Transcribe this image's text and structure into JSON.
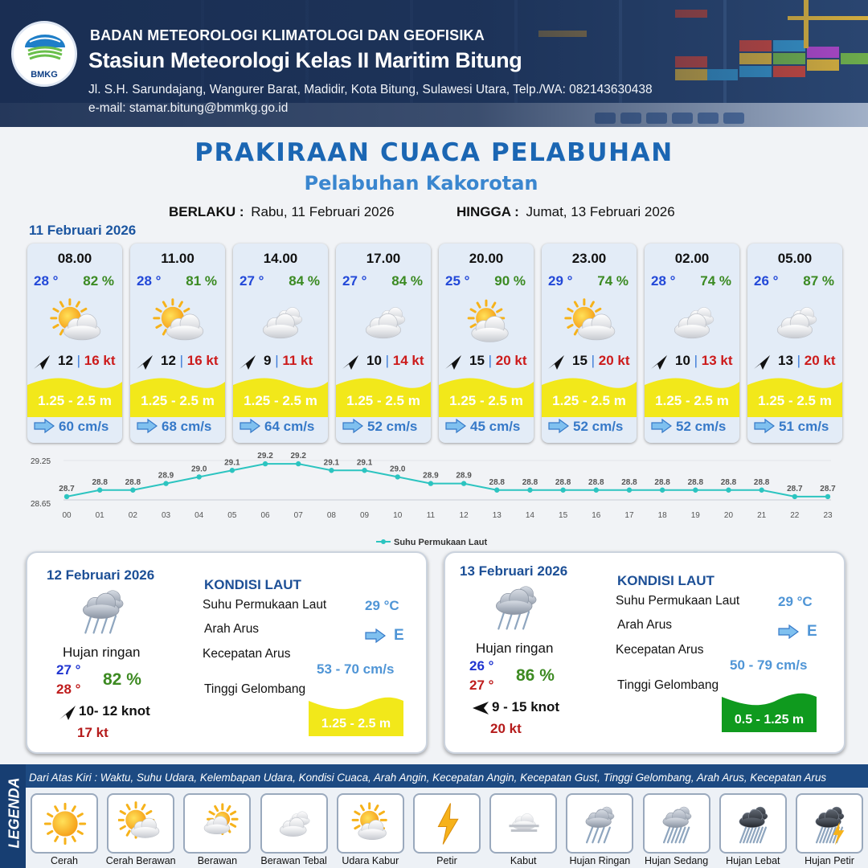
{
  "header": {
    "organization": "BADAN METEOROLOGI KLIMATOLOGI DAN GEOFISIKA",
    "station": "Stasiun Meteorologi Kelas II Maritim Bitung",
    "address": "Jl. S.H. Sarundajang, Wangurer Barat, Madidir, Kota Bitung, Sulawesi Utara, Telp./WA: 082143630438",
    "email": "e-mail: stamar.bitung@bmmkg.go.id",
    "logo_text": "BMKG"
  },
  "title": "PRAKIRAAN CUACA PELABUHAN",
  "subtitle": "Pelabuhan Kakorotan",
  "validity": {
    "from_label": "BERLAKU :",
    "from_value": "Rabu, 11 Februari 2026",
    "to_label": "HINGGA :",
    "to_value": "Jumat, 13 Februari 2026"
  },
  "day1_date": "11 Februari 2026",
  "hourly": [
    {
      "time": "08.00",
      "temp": "28 °",
      "humidity": "82 %",
      "icon": "cerah-berawan",
      "wind_speed": "12",
      "gust": "16 kt",
      "wave": "1.25 - 2.5 m",
      "current": "60 cm/s"
    },
    {
      "time": "11.00",
      "temp": "28 °",
      "humidity": "81 %",
      "icon": "cerah-berawan",
      "wind_speed": "12",
      "gust": "16 kt",
      "wave": "1.25 - 2.5 m",
      "current": "68 cm/s"
    },
    {
      "time": "14.00",
      "temp": "27 °",
      "humidity": "84 %",
      "icon": "berawan-tebal",
      "wind_speed": "9",
      "gust": "11 kt",
      "wave": "1.25 - 2.5 m",
      "current": "64 cm/s"
    },
    {
      "time": "17.00",
      "temp": "27 °",
      "humidity": "84 %",
      "icon": "berawan-tebal",
      "wind_speed": "10",
      "gust": "14 kt",
      "wave": "1.25 - 2.5 m",
      "current": "52 cm/s"
    },
    {
      "time": "20.00",
      "temp": "25 °",
      "humidity": "90 %",
      "icon": "udara-kabur",
      "wind_speed": "15",
      "gust": "20 kt",
      "wave": "1.25 - 2.5 m",
      "current": "45 cm/s"
    },
    {
      "time": "23.00",
      "temp": "29 °",
      "humidity": "74 %",
      "icon": "cerah-berawan",
      "wind_speed": "15",
      "gust": "20 kt",
      "wave": "1.25 - 2.5 m",
      "current": "52 cm/s"
    },
    {
      "time": "02.00",
      "temp": "28 °",
      "humidity": "74 %",
      "icon": "berawan-tebal",
      "wind_speed": "10",
      "gust": "13 kt",
      "wave": "1.25 - 2.5 m",
      "current": "52 cm/s"
    },
    {
      "time": "05.00",
      "temp": "26 °",
      "humidity": "87 %",
      "icon": "berawan-tebal",
      "wind_speed": "13",
      "gust": "20 kt",
      "wave": "1.25 - 2.5 m",
      "current": "51 cm/s"
    }
  ],
  "chart_data": {
    "type": "line",
    "x": [
      "00",
      "01",
      "02",
      "03",
      "04",
      "05",
      "06",
      "07",
      "08",
      "09",
      "10",
      "11",
      "12",
      "13",
      "14",
      "15",
      "16",
      "17",
      "18",
      "19",
      "20",
      "21",
      "22",
      "23"
    ],
    "series": [
      {
        "name": "Suhu Permukaan Laut",
        "values": [
          28.7,
          28.8,
          28.8,
          28.9,
          29.0,
          29.1,
          29.2,
          29.2,
          29.1,
          29.1,
          29.0,
          28.9,
          28.9,
          28.8,
          28.8,
          28.8,
          28.8,
          28.8,
          28.8,
          28.8,
          28.8,
          28.8,
          28.7,
          28.7
        ]
      }
    ],
    "ylim": [
      28.65,
      29.25
    ],
    "yticks": [
      "29.25",
      "28.65"
    ],
    "color": "#2cc4c0",
    "legend_position": "bottom"
  },
  "days": [
    {
      "date": "12 Februari 2026",
      "condition": "Hujan ringan",
      "temp_min": "27 °",
      "temp_max": "28 °",
      "humidity": "82 %",
      "wind": "10- 12 knot",
      "gust": "17 kt",
      "sea_title": "KONDISI LAUT",
      "sst_label": "Suhu Permukaan Laut",
      "sst": "29 °C",
      "current_dir_label": "Arah Arus",
      "current_dir": "E",
      "current_speed_label": "Kecepatan Arus",
      "current_speed": "53 - 70 cm/s",
      "wave_label": "Tinggi Gelombang",
      "wave": "1.25 - 2.5 m",
      "wave_color": "#f2e81a"
    },
    {
      "date": "13 Februari 2026",
      "condition": "Hujan ringan",
      "temp_min": "26 °",
      "temp_max": "27 °",
      "humidity": "86 %",
      "wind": "9  - 15 knot",
      "gust": "20 kt",
      "sea_title": "KONDISI LAUT",
      "sst_label": "Suhu Permukaan Laut",
      "sst": "29 °C",
      "current_dir_label": "Arah Arus",
      "current_dir": "E",
      "current_speed_label": "Kecepatan Arus",
      "current_speed": "50 - 79 cm/s",
      "wave_label": "Tinggi Gelombang",
      "wave": "0.5 - 1.25 m",
      "wave_color": "#0f9a1e"
    }
  ],
  "legend": {
    "side_label": "LEGENDA",
    "note": "Dari Atas Kiri : Waktu, Suhu Udara, Kelembapan Udara, Kondisi Cuaca, Arah Angin, Kecepatan Angin, Kecepatan Gust, Tinggi Gelombang, Arah Arus, Kecepatan Arus",
    "items": [
      "Cerah",
      "Cerah Berawan",
      "Berawan",
      "Berawan Tebal",
      "Udara Kabur",
      "Petir",
      "Kabut",
      "Hujan Ringan",
      "Hujan Sedang",
      "Hujan Lebat",
      "Hujan Petir"
    ]
  },
  "colors": {
    "title": "#1b66b3",
    "temperature": "#2248d8",
    "humidity": "#3b8a22",
    "gust": "#cc1b1b",
    "wave_moderate": "#f2e81a",
    "wave_low": "#0f9a1e",
    "current": "#3679c8"
  }
}
